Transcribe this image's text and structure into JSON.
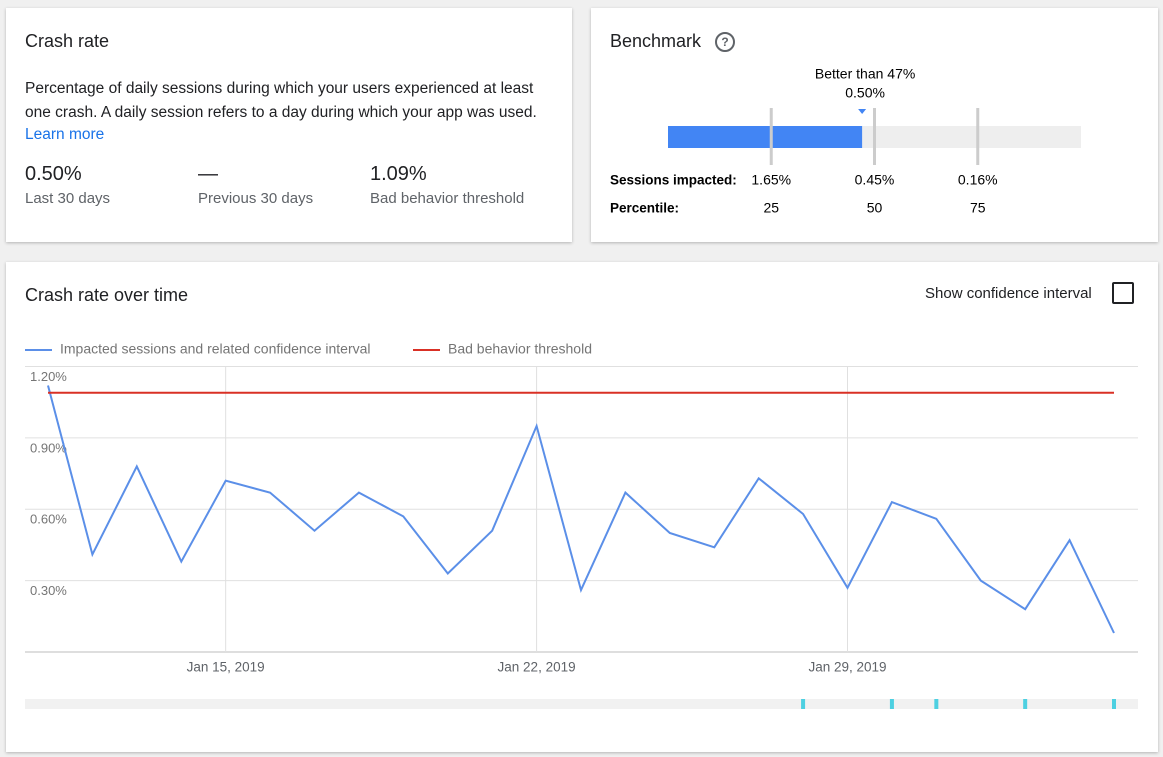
{
  "crash_rate": {
    "title": "Crash rate",
    "description": "Percentage of daily sessions during which your users experienced at least one crash. A daily session refers to a day during which your app was used.",
    "link": "Learn more",
    "stats": [
      {
        "value": "0.50%",
        "label": "Last 30 days"
      },
      {
        "value": "—",
        "label": "Previous 30 days"
      },
      {
        "value": "1.09%",
        "label": "Bad behavior threshold"
      }
    ]
  },
  "benchmark": {
    "title": "Benchmark",
    "percentile": 47,
    "percentile_label": "Better than 47%",
    "value_label": "0.50%",
    "range": [
      0,
      100
    ],
    "rows": [
      {
        "label": "Sessions impacted:",
        "values": [
          "1.65%",
          "0.45%",
          "0.16%"
        ]
      },
      {
        "label": "Percentile:",
        "values": [
          25,
          50,
          75
        ]
      }
    ]
  },
  "over_time": {
    "title": "Crash rate over time",
    "toggle": "Show confidence interval",
    "chart_data": {
      "type": "line",
      "x": [
        "Jan 11, 2019",
        "Jan 12, 2019",
        "Jan 13, 2019",
        "Jan 14, 2019",
        "Jan 15, 2019",
        "Jan 16, 2019",
        "Jan 17, 2019",
        "Jan 18, 2019",
        "Jan 19, 2019",
        "Jan 20, 2019",
        "Jan 21, 2019",
        "Jan 22, 2019",
        "Jan 23, 2019",
        "Jan 24, 2019",
        "Jan 25, 2019",
        "Jan 26, 2019",
        "Jan 27, 2019",
        "Jan 28, 2019",
        "Jan 29, 2019",
        "Jan 30, 2019",
        "Jan 31, 2019",
        "Feb 1, 2019",
        "Feb 2, 2019",
        "Feb 3, 2019",
        "Feb 4, 2019"
      ],
      "series": [
        {
          "name": "Impacted sessions and related confidence interval",
          "color": "#5b8fe8",
          "values": [
            1.12,
            0.41,
            0.78,
            0.38,
            0.72,
            0.67,
            0.51,
            0.67,
            0.57,
            0.33,
            0.51,
            0.95,
            0.26,
            0.67,
            0.5,
            0.44,
            0.73,
            0.58,
            0.27,
            0.63,
            0.56,
            0.3,
            0.18,
            0.47,
            0.08
          ]
        },
        {
          "name": "Bad behavior threshold",
          "color": "#d93025",
          "values": [
            1.09,
            1.09,
            1.09,
            1.09,
            1.09,
            1.09,
            1.09,
            1.09,
            1.09,
            1.09,
            1.09,
            1.09,
            1.09,
            1.09,
            1.09,
            1.09,
            1.09,
            1.09,
            1.09,
            1.09,
            1.09,
            1.09,
            1.09,
            1.09,
            1.09
          ]
        }
      ],
      "ylim": [
        0,
        1.2
      ],
      "yticks": [
        {
          "value": 1.2,
          "label": "1.20%"
        },
        {
          "value": 0.9,
          "label": "0.90%"
        },
        {
          "value": 0.6,
          "label": "0.60%"
        },
        {
          "value": 0.3,
          "label": "0.30%"
        }
      ],
      "xticks": [
        "Jan 15, 2019",
        "Jan 22, 2019",
        "Jan 29, 2019"
      ],
      "grid": true,
      "event_dates": [
        "Jan 28, 2019",
        "Jan 30, 2019",
        "Jan 31, 2019",
        "Feb 2, 2019",
        "Feb 4, 2019"
      ],
      "event_color": "#4dd0e1"
    }
  }
}
